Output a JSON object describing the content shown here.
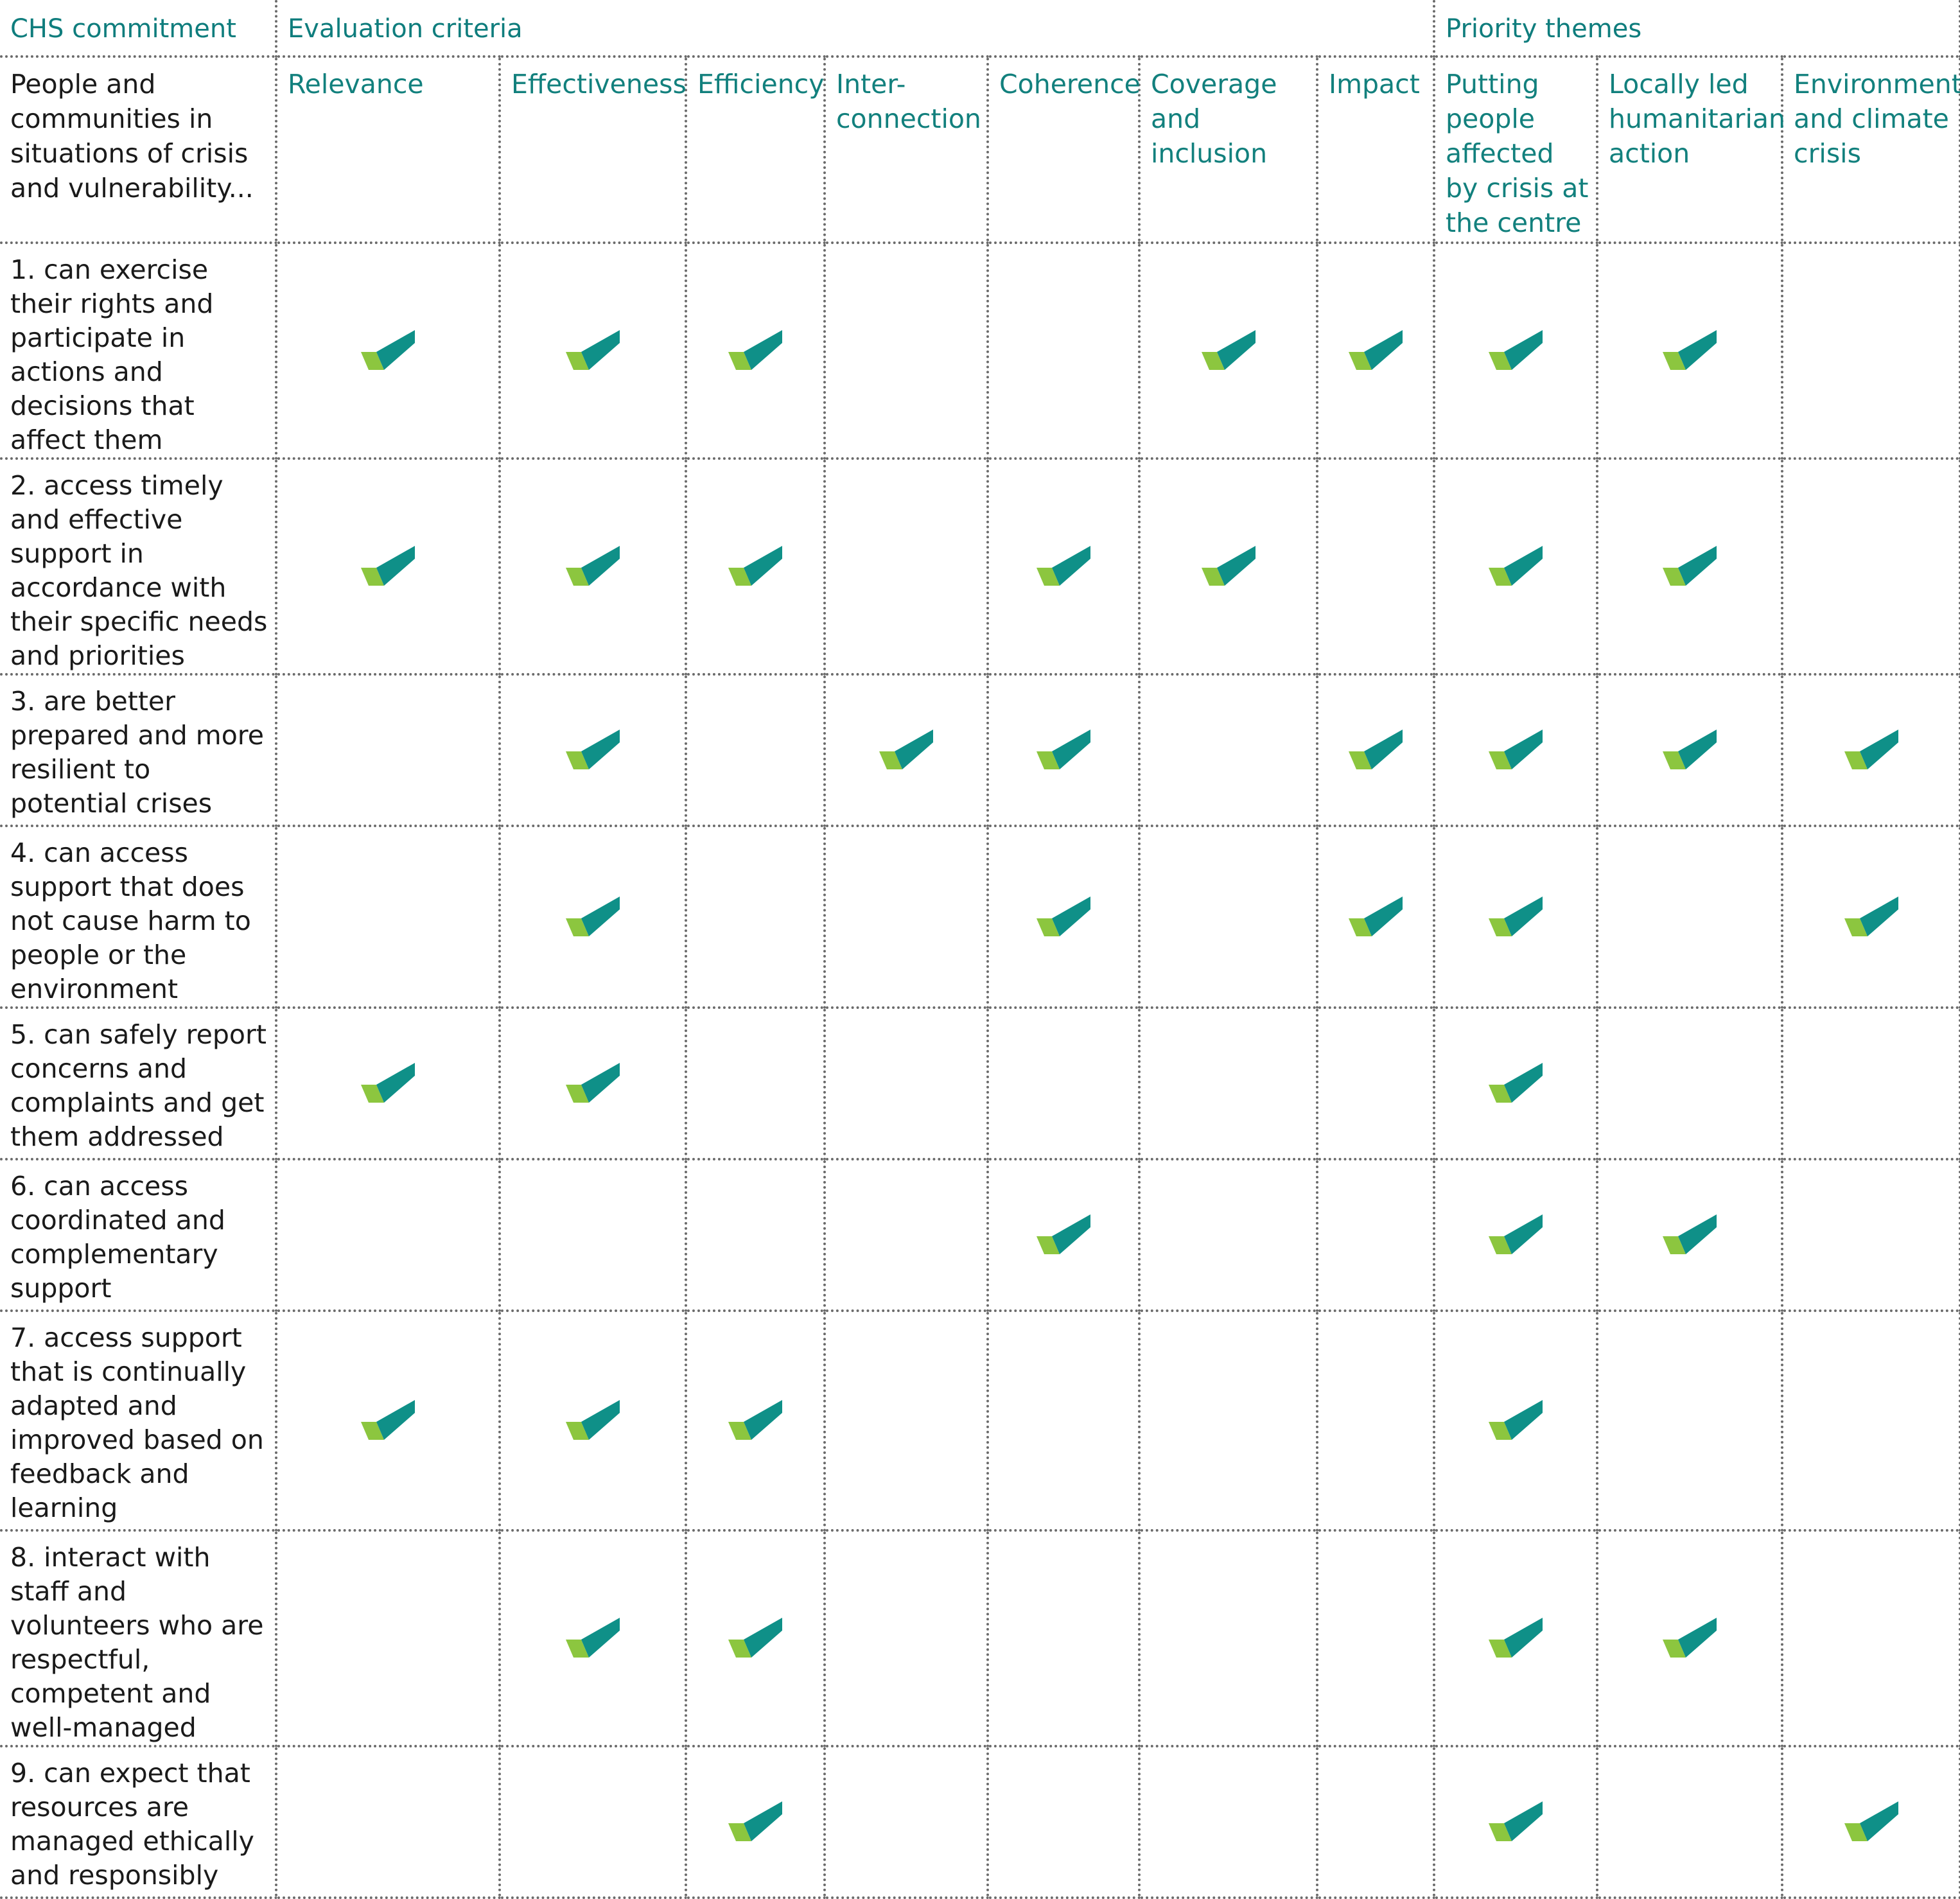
{
  "header": {
    "chs_commitment": "CHS commitment",
    "evaluation_criteria": "Evaluation criteria",
    "priority_themes": "Priority themes",
    "intro": "People and communities in situations of crisis and vulnerability..."
  },
  "columns": [
    "Relevance",
    "Effectiveness",
    "Efficiency",
    "Inter-connection",
    "Coherence",
    "Coverage and inclusion",
    "Impact",
    "Putting people affected by crisis at the centre",
    "Locally led humanitarian action",
    "Environment and climate crisis"
  ],
  "colors": {
    "heading_teal": "#12807d",
    "check_teal": "#0f9088",
    "check_lime": "#8cc63f",
    "grid": "#6b6b6b"
  },
  "check_icon": "checkmark-icon",
  "rows": [
    {
      "label": "1. can exercise their rights and participate in actions and decisions that affect them",
      "checks": [
        true,
        true,
        true,
        false,
        false,
        true,
        true,
        true,
        true,
        false
      ]
    },
    {
      "label": "2. access timely and effective support in accordance with their specific needs and priorities",
      "checks": [
        true,
        true,
        true,
        false,
        true,
        true,
        false,
        true,
        true,
        false
      ]
    },
    {
      "label": "3. are better prepared and more resilient to potential crises",
      "checks": [
        false,
        true,
        false,
        true,
        true,
        false,
        true,
        true,
        true,
        true
      ]
    },
    {
      "label": "4. can access support that does not cause harm to people or the environment",
      "checks": [
        false,
        true,
        false,
        false,
        true,
        false,
        true,
        true,
        false,
        true
      ]
    },
    {
      "label": "5. can safely report concerns and complaints and get them addressed",
      "checks": [
        true,
        true,
        false,
        false,
        false,
        false,
        false,
        true,
        false,
        false
      ]
    },
    {
      "label": "6. can access coordinated and complementary support",
      "checks": [
        false,
        false,
        false,
        false,
        true,
        false,
        false,
        true,
        true,
        false
      ]
    },
    {
      "label": "7. access support that is continually adapted and improved based on feedback and learning",
      "checks": [
        true,
        true,
        true,
        false,
        false,
        false,
        false,
        true,
        false,
        false
      ]
    },
    {
      "label": "8. interact with staff and volunteers who are respectful, competent and well-managed",
      "checks": [
        false,
        true,
        true,
        false,
        false,
        false,
        false,
        true,
        true,
        false
      ]
    },
    {
      "label": "9. can expect that resources are managed ethically and responsibly",
      "checks": [
        false,
        false,
        true,
        false,
        false,
        false,
        false,
        true,
        false,
        true
      ]
    }
  ]
}
